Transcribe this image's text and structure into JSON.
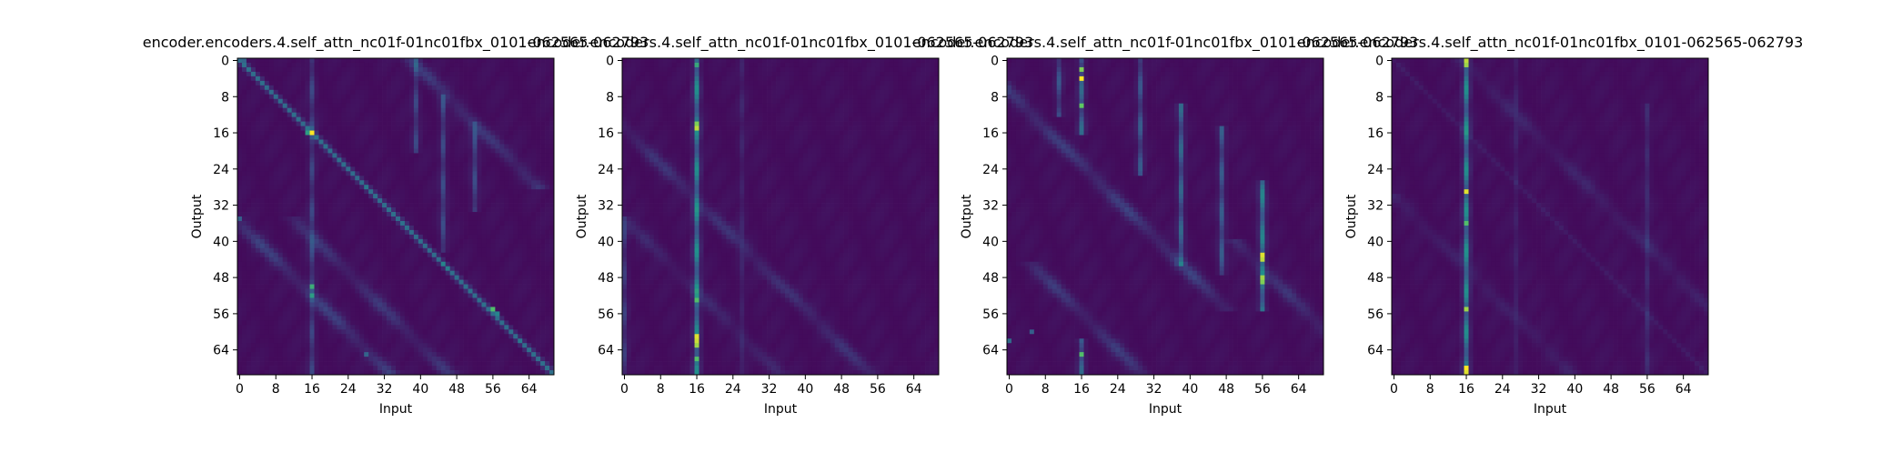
{
  "colormap": [
    "#440154",
    "#3b528b",
    "#21918c",
    "#5ec962",
    "#fde725"
  ],
  "chart_data": [
    {
      "type": "heatmap",
      "title": "encoder.encoders.4.self_attn_nc01f-01nc01fbx_0101-062565-062793",
      "xlabel": "Input",
      "ylabel": "Output",
      "size": 70,
      "value_range": [
        0,
        1
      ],
      "x_ticks": [
        0,
        8,
        16,
        24,
        32,
        40,
        48,
        56,
        64
      ],
      "y_ticks": [
        0,
        8,
        16,
        24,
        32,
        40,
        48,
        56,
        64
      ],
      "features": {
        "diagonal": {
          "strength": 0.32,
          "width": 0.6
        },
        "columns": [
          {
            "col": 16,
            "strength": 0.18,
            "rows": [
              0,
              69
            ]
          },
          {
            "col": 39,
            "strength": 0.18,
            "rows": [
              0,
              20
            ]
          },
          {
            "col": 45,
            "strength": 0.2,
            "rows": [
              8,
              42
            ]
          },
          {
            "col": 52,
            "strength": 0.2,
            "rows": [
              14,
              33
            ]
          }
        ],
        "bands": [
          {
            "offset": 38,
            "strength": 0.14,
            "rows": [
              0,
              28
            ]
          },
          {
            "offset": -36,
            "strength": 0.16,
            "rows": [
              28,
              69
            ]
          },
          {
            "offset": -23,
            "strength": 0.13,
            "rows": [
              35,
              69
            ]
          }
        ],
        "spots": [
          {
            "row": 16,
            "col": 16,
            "value": 1.0
          },
          {
            "row": 16,
            "col": 15,
            "value": 0.55
          },
          {
            "row": 50,
            "col": 16,
            "value": 0.62
          },
          {
            "row": 52,
            "col": 16,
            "value": 0.55
          },
          {
            "row": 55,
            "col": 56,
            "value": 0.7
          },
          {
            "row": 56,
            "col": 57,
            "value": 0.45
          },
          {
            "row": 45,
            "col": 45,
            "value": 0.45
          },
          {
            "row": 46,
            "col": 46,
            "value": 0.42
          },
          {
            "row": 28,
            "col": 28,
            "value": 0.4
          },
          {
            "row": 0,
            "col": 1,
            "value": 0.32
          },
          {
            "row": 62,
            "col": 62,
            "value": 0.4
          },
          {
            "row": 65,
            "col": 28,
            "value": 0.32
          },
          {
            "row": 35,
            "col": 0,
            "value": 0.3
          }
        ]
      }
    },
    {
      "type": "heatmap",
      "title": "encoder.encoders.4.self_attn_nc01f-01nc01fbx_0101-062565-062793",
      "xlabel": "Input",
      "ylabel": "Output",
      "size": 70,
      "value_range": [
        0,
        1
      ],
      "x_ticks": [
        0,
        8,
        16,
        24,
        32,
        40,
        48,
        56,
        64
      ],
      "y_ticks": [
        0,
        8,
        16,
        24,
        32,
        40,
        48,
        56,
        64
      ],
      "features": {
        "diagonal": {
          "strength": 0.0,
          "width": 0.6
        },
        "columns": [
          {
            "col": 16,
            "strength": 0.45,
            "rows": [
              0,
              69
            ]
          },
          {
            "col": 0,
            "strength": 0.15,
            "rows": [
              35,
              69
            ]
          },
          {
            "col": 26,
            "strength": 0.07,
            "rows": [
              0,
              69
            ]
          }
        ],
        "bands": [
          {
            "offset": -15,
            "strength": 0.12,
            "rows": [
              0,
              69
            ]
          },
          {
            "offset": -35,
            "strength": 0.08,
            "rows": [
              20,
              69
            ]
          }
        ],
        "spots": [
          {
            "row": 15,
            "col": 16,
            "value": 0.9
          },
          {
            "row": 14,
            "col": 16,
            "value": 0.8
          },
          {
            "row": 61,
            "col": 16,
            "value": 0.95
          },
          {
            "row": 62,
            "col": 16,
            "value": 0.92
          },
          {
            "row": 63,
            "col": 16,
            "value": 0.85
          },
          {
            "row": 66,
            "col": 16,
            "value": 0.7
          },
          {
            "row": 1,
            "col": 16,
            "value": 0.6
          },
          {
            "row": 53,
            "col": 16,
            "value": 0.7
          }
        ]
      }
    },
    {
      "type": "heatmap",
      "title": "encoder.encoders.4.self_attn_nc01f-01nc01fbx_0101-062565-062793",
      "xlabel": "Input",
      "ylabel": "Output",
      "size": 70,
      "value_range": [
        0,
        1
      ],
      "x_ticks": [
        0,
        8,
        16,
        24,
        32,
        40,
        48,
        56,
        64
      ],
      "y_ticks": [
        0,
        8,
        16,
        24,
        32,
        40,
        48,
        56,
        64
      ],
      "features": {
        "diagonal": {
          "strength": 0.0,
          "width": 0.6
        },
        "columns": [
          {
            "col": 16,
            "strength": 0.3,
            "rows": [
              0,
              16
            ]
          },
          {
            "col": 16,
            "strength": 0.3,
            "rows": [
              62,
              69
            ]
          },
          {
            "col": 56,
            "strength": 0.42,
            "rows": [
              27,
              55
            ]
          },
          {
            "col": 38,
            "strength": 0.3,
            "rows": [
              10,
              45
            ]
          },
          {
            "col": 47,
            "strength": 0.26,
            "rows": [
              15,
              47
            ]
          },
          {
            "col": 29,
            "strength": 0.24,
            "rows": [
              0,
              25
            ]
          },
          {
            "col": 11,
            "strength": 0.22,
            "rows": [
              0,
              12
            ]
          }
        ],
        "bands": [
          {
            "offset": -7,
            "strength": 0.16,
            "rows": [
              5,
              55
            ]
          },
          {
            "offset": -40,
            "strength": 0.14,
            "rows": [
              45,
              69
            ]
          },
          {
            "offset": 10,
            "strength": 0.12,
            "rows": [
              40,
              69
            ]
          }
        ],
        "spots": [
          {
            "row": 2,
            "col": 16,
            "value": 0.8
          },
          {
            "row": 4,
            "col": 16,
            "value": 1.0
          },
          {
            "row": 10,
            "col": 16,
            "value": 0.75
          },
          {
            "row": 43,
            "col": 56,
            "value": 0.95
          },
          {
            "row": 44,
            "col": 56,
            "value": 0.9
          },
          {
            "row": 48,
            "col": 56,
            "value": 0.85
          },
          {
            "row": 49,
            "col": 56,
            "value": 0.8
          },
          {
            "row": 65,
            "col": 16,
            "value": 0.7
          },
          {
            "row": 62,
            "col": 0,
            "value": 0.35
          },
          {
            "row": 60,
            "col": 5,
            "value": 0.3
          }
        ]
      }
    },
    {
      "type": "heatmap",
      "title": "encoder.encoders.4.self_attn_nc01f-01nc01fbx_0101-062565-062793",
      "xlabel": "Input",
      "ylabel": "Output",
      "size": 70,
      "value_range": [
        0,
        1
      ],
      "x_ticks": [
        0,
        8,
        16,
        24,
        32,
        40,
        48,
        56,
        64
      ],
      "y_ticks": [
        0,
        8,
        16,
        24,
        32,
        40,
        48,
        56,
        64
      ],
      "features": {
        "diagonal": {
          "strength": 0.04,
          "width": 0.6
        },
        "columns": [
          {
            "col": 16,
            "strength": 0.45,
            "rows": [
              0,
              69
            ]
          },
          {
            "col": 56,
            "strength": 0.1,
            "rows": [
              10,
              69
            ]
          },
          {
            "col": 27,
            "strength": 0.06,
            "rows": [
              0,
              69
            ]
          }
        ],
        "bands": [
          {
            "offset": 15,
            "strength": 0.07,
            "rows": [
              0,
              69
            ]
          },
          {
            "offset": -30,
            "strength": 0.06,
            "rows": [
              30,
              69
            ]
          }
        ],
        "spots": [
          {
            "row": 0,
            "col": 16,
            "value": 0.9
          },
          {
            "row": 1,
            "col": 16,
            "value": 0.85
          },
          {
            "row": 29,
            "col": 16,
            "value": 0.95
          },
          {
            "row": 55,
            "col": 16,
            "value": 0.85
          },
          {
            "row": 68,
            "col": 16,
            "value": 1.0
          },
          {
            "row": 69,
            "col": 16,
            "value": 0.95
          },
          {
            "row": 36,
            "col": 16,
            "value": 0.7
          }
        ]
      }
    }
  ]
}
